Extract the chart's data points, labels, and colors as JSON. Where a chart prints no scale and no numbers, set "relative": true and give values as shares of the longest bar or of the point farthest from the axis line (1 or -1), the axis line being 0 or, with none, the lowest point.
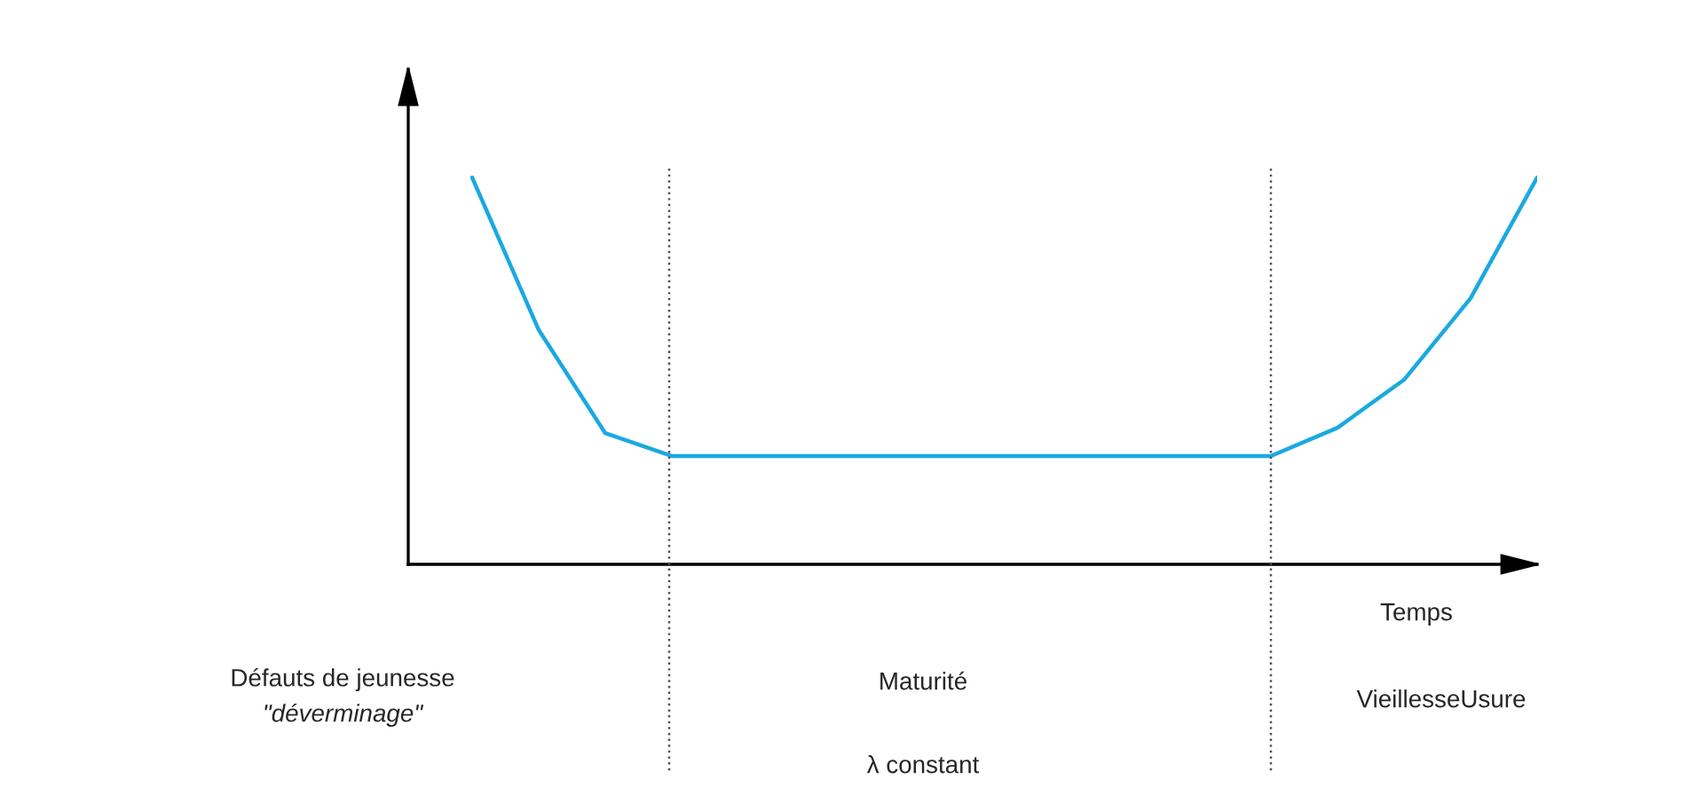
{
  "chart_data": {
    "type": "line",
    "relative": true,
    "xlabel": "Temps",
    "legend": false,
    "marker": "none",
    "line_style": "solid",
    "categories": [
      null,
      null,
      null,
      null,
      null,
      null,
      null,
      null,
      null,
      null,
      null,
      null,
      null,
      null,
      null,
      null,
      null
    ],
    "series": [
      {
        "color": "#1aa9e0",
        "values": [
          1.0,
          0.606,
          0.339,
          0.28,
          0.28,
          0.28,
          0.28,
          0.28,
          0.28,
          0.28,
          0.28,
          0.28,
          0.28,
          0.353,
          0.477,
          0.688,
          1.0
        ]
      }
    ],
    "annotations": [
      "Défauts de jeunesse",
      "\"déverminage\"",
      "Maturité",
      "λ constant",
      "VieillesseUsure"
    ]
  }
}
